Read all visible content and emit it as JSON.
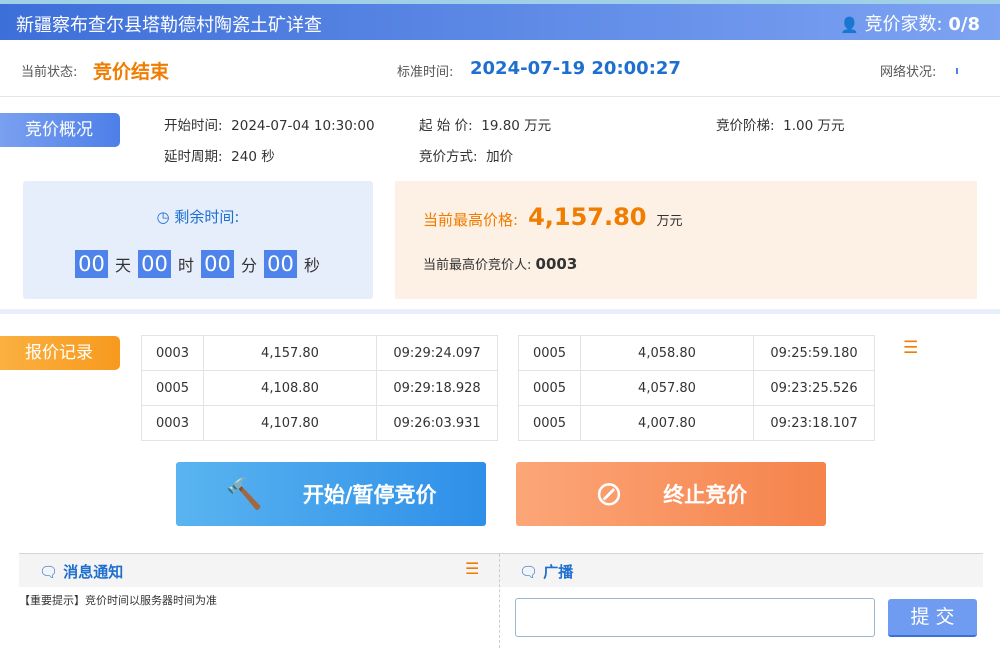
{
  "header": {
    "title": "新疆察布查尔县塔勒德村陶瓷土矿详查",
    "bidders_label": "竞价家数:",
    "bidders_value": "0/8"
  },
  "status": {
    "label": "当前状态:",
    "value": "竞价结束",
    "time_label": "标准时间:",
    "time_value": "2024-07-19 20:00:27",
    "network_label": "网络状况:"
  },
  "overview": {
    "tag": "竞价概况",
    "start_label": "开始时间:",
    "start_value": "2024-07-04 10:30:00",
    "start_price_label": "起 始 价:",
    "start_price_value": "19.80 万元",
    "step_label": "竞价阶梯:",
    "step_value": "1.00 万元",
    "delay_label": "延时周期:",
    "delay_value": "240 秒",
    "mode_label": "竞价方式:",
    "mode_value": "加价"
  },
  "timer": {
    "label": "剩余时间:",
    "days": "00",
    "days_unit": "天",
    "hours": "00",
    "hours_unit": "时",
    "minutes": "00",
    "minutes_unit": "分",
    "seconds": "00",
    "seconds_unit": "秒"
  },
  "highest": {
    "price_label": "当前最高价格:",
    "price_value": "4,157.80",
    "price_unit": "万元",
    "bidder_label": "当前最高价竞价人:",
    "bidder_value": "0003"
  },
  "records": {
    "tag": "报价记录",
    "left": [
      [
        "0003",
        "4,157.80",
        "09:29:24.097"
      ],
      [
        "0005",
        "4,108.80",
        "09:29:18.928"
      ],
      [
        "0003",
        "4,107.80",
        "09:26:03.931"
      ]
    ],
    "right": [
      [
        "0005",
        "4,058.80",
        "09:25:59.180"
      ],
      [
        "0005",
        "4,057.80",
        "09:23:25.526"
      ],
      [
        "0005",
        "4,007.80",
        "09:23:18.107"
      ]
    ]
  },
  "buttons": {
    "start_pause": "开始/暂停竞价",
    "stop": "终止竞价"
  },
  "notice": {
    "title": "消息通知",
    "items": [
      "【重要提示】竞价时间以服务器时间为准"
    ]
  },
  "broadcast": {
    "title": "广播",
    "input_value": "",
    "submit": "提 交"
  },
  "colors": {
    "accent_blue": "#3d6fd9",
    "accent_orange": "#f07c00"
  }
}
